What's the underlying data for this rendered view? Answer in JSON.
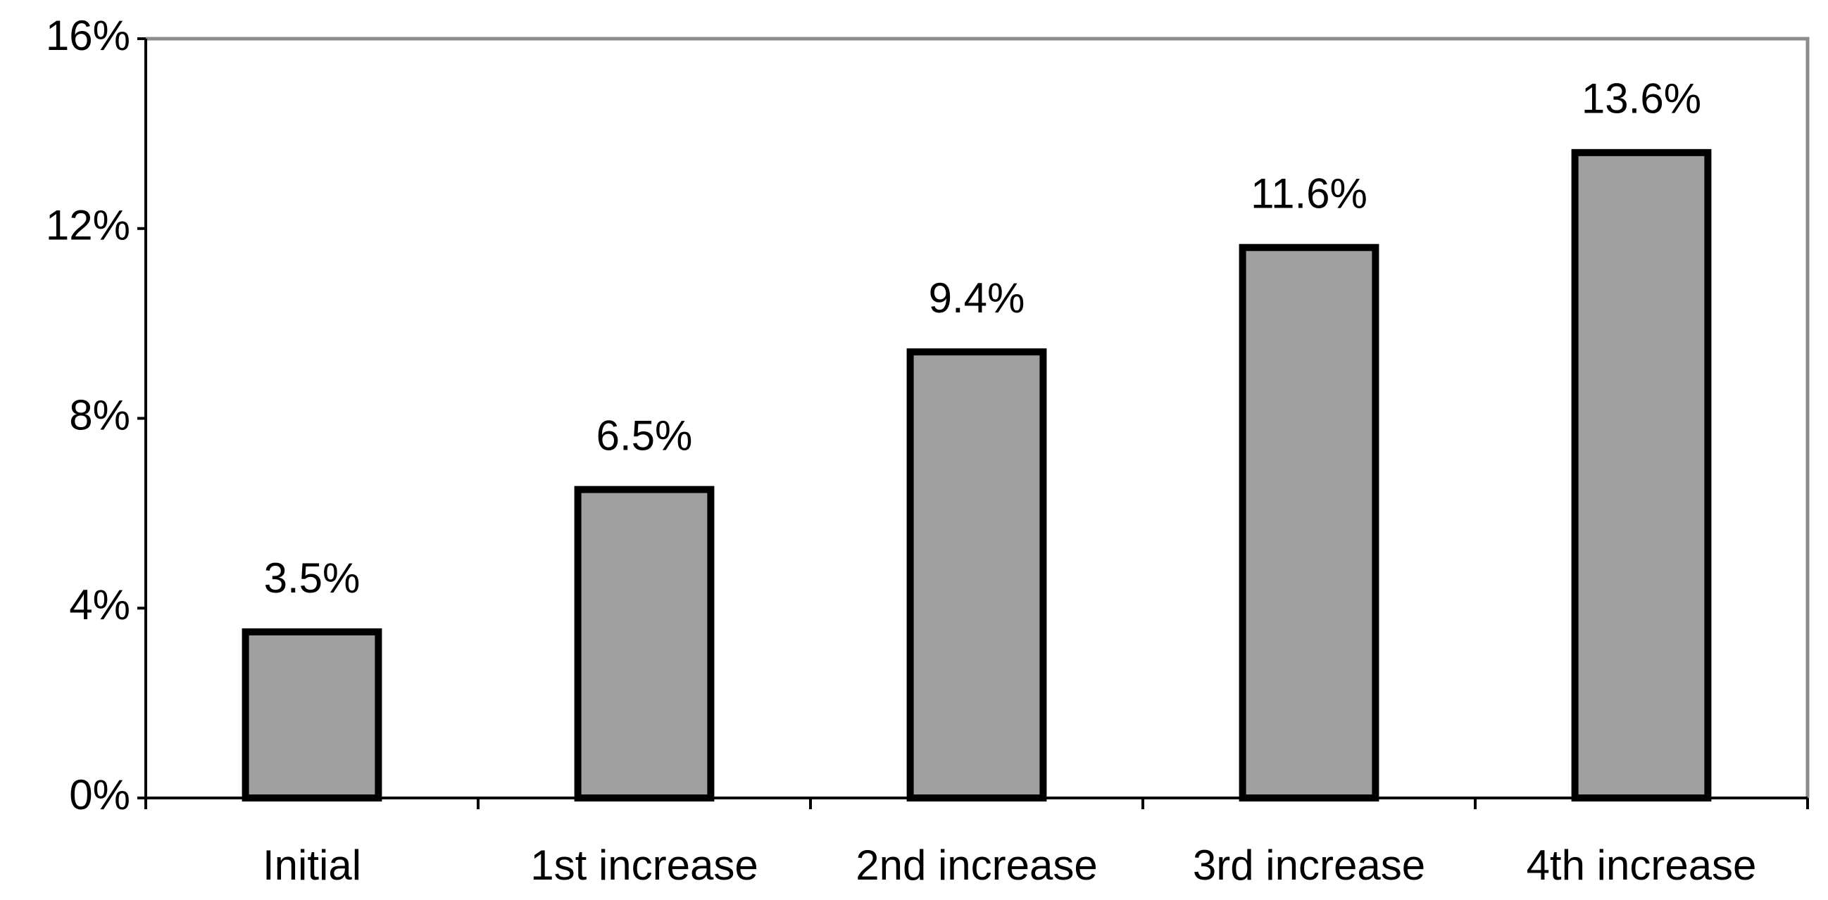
{
  "chart_data": {
    "type": "bar",
    "categories": [
      "Initial",
      "1st increase",
      "2nd increase",
      "3rd increase",
      "4th increase"
    ],
    "values": [
      3.5,
      6.5,
      9.4,
      11.6,
      13.6
    ],
    "value_labels": [
      "3.5%",
      "6.5%",
      "9.4%",
      "11.6%",
      "13.6%"
    ],
    "color": "#a0a0a0",
    "ylim": [
      0,
      16
    ],
    "yticks": [
      {
        "value": 0,
        "label": "0%"
      },
      {
        "value": 4,
        "label": "4%"
      },
      {
        "value": 8,
        "label": "8%"
      },
      {
        "value": 12,
        "label": "12%"
      },
      {
        "value": 16,
        "label": "16%"
      }
    ],
    "grid": false
  }
}
